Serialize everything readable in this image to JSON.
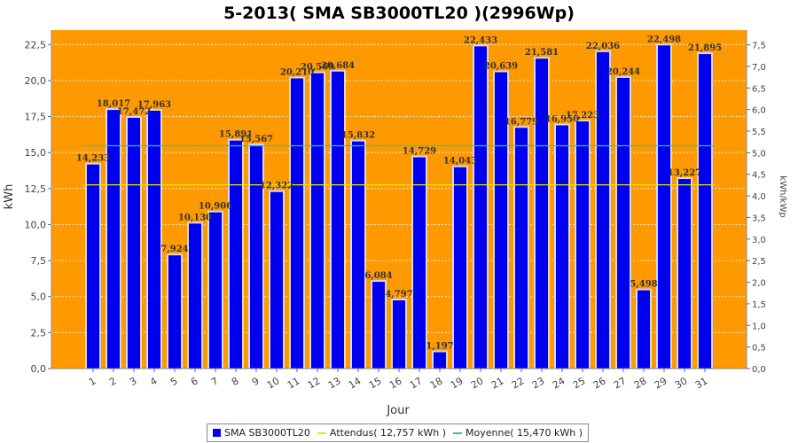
{
  "chart_data": {
    "type": "bar",
    "title": "5-2013( SMA SB3000TL20 )(2996Wp)",
    "xlabel": "Jour",
    "ylabel": "kWh",
    "y2label": "kWh/kWp",
    "ylim": [
      0,
      23.5
    ],
    "y2lim": [
      0,
      7.84
    ],
    "yticks": [
      "0,0",
      "2,5",
      "5,0",
      "7,5",
      "10,0",
      "12,5",
      "15,0",
      "17,5",
      "20,0",
      "22,5"
    ],
    "y2ticks": [
      "0,0",
      "0,5",
      "1,0",
      "1,5",
      "2,0",
      "2,5",
      "3,0",
      "3,5",
      "4,0",
      "4,5",
      "5,0",
      "5,5",
      "6,0",
      "6,5",
      "7,0",
      "7,5"
    ],
    "categories": [
      "1",
      "2",
      "3",
      "4",
      "5",
      "6",
      "7",
      "8",
      "9",
      "10",
      "11",
      "12",
      "13",
      "14",
      "15",
      "16",
      "17",
      "18",
      "19",
      "20",
      "21",
      "22",
      "23",
      "24",
      "25",
      "26",
      "27",
      "28",
      "29",
      "30",
      "31"
    ],
    "series": [
      {
        "name": "SMA SB3000TL20",
        "color": "#0000ee",
        "values": [
          14.233,
          18.017,
          17.472,
          17.963,
          7.924,
          10.13,
          10.906,
          15.891,
          15.567,
          12.322,
          20.21,
          20.569,
          20.684,
          15.832,
          6.084,
          4.797,
          14.729,
          1.197,
          14.043,
          22.433,
          20.639,
          16.779,
          21.581,
          16.95,
          17.223,
          22.036,
          20.244,
          5.498,
          22.498,
          13.227,
          21.895
        ],
        "labels": [
          "14,233",
          "18,017",
          "17,472",
          "17,963",
          "7,924",
          "10,130",
          "10,906",
          "15,891",
          "15,567",
          "12,322",
          "20,210",
          "20,569",
          "20,684",
          "15,832",
          "6,084",
          "4,797",
          "14,729",
          "1,197",
          "14,043",
          "22,433",
          "20,639",
          "16,779",
          "21,581",
          "16,950",
          "17,223",
          "22,036",
          "20,244",
          "5,498",
          "22,498",
          "13,227",
          "21,895"
        ]
      }
    ],
    "reference_lines": [
      {
        "name": "Attendus",
        "value": 12.757,
        "color": "#e8e800"
      },
      {
        "name": "Moyenne",
        "value": 15.47,
        "color": "#2ec4a8"
      }
    ],
    "grid": true,
    "legend_position": "bottom",
    "plot_background": "#ff9900"
  },
  "legend": {
    "items": [
      {
        "label": "SMA SB3000TL20",
        "color": "#0000ee",
        "kind": "box"
      },
      {
        "label": "Attendus( 12,757 kWh )",
        "color": "#e8e800",
        "kind": "line"
      },
      {
        "label": "Moyenne( 15,470 kWh )",
        "color": "#2ec4a8",
        "kind": "line"
      }
    ]
  }
}
